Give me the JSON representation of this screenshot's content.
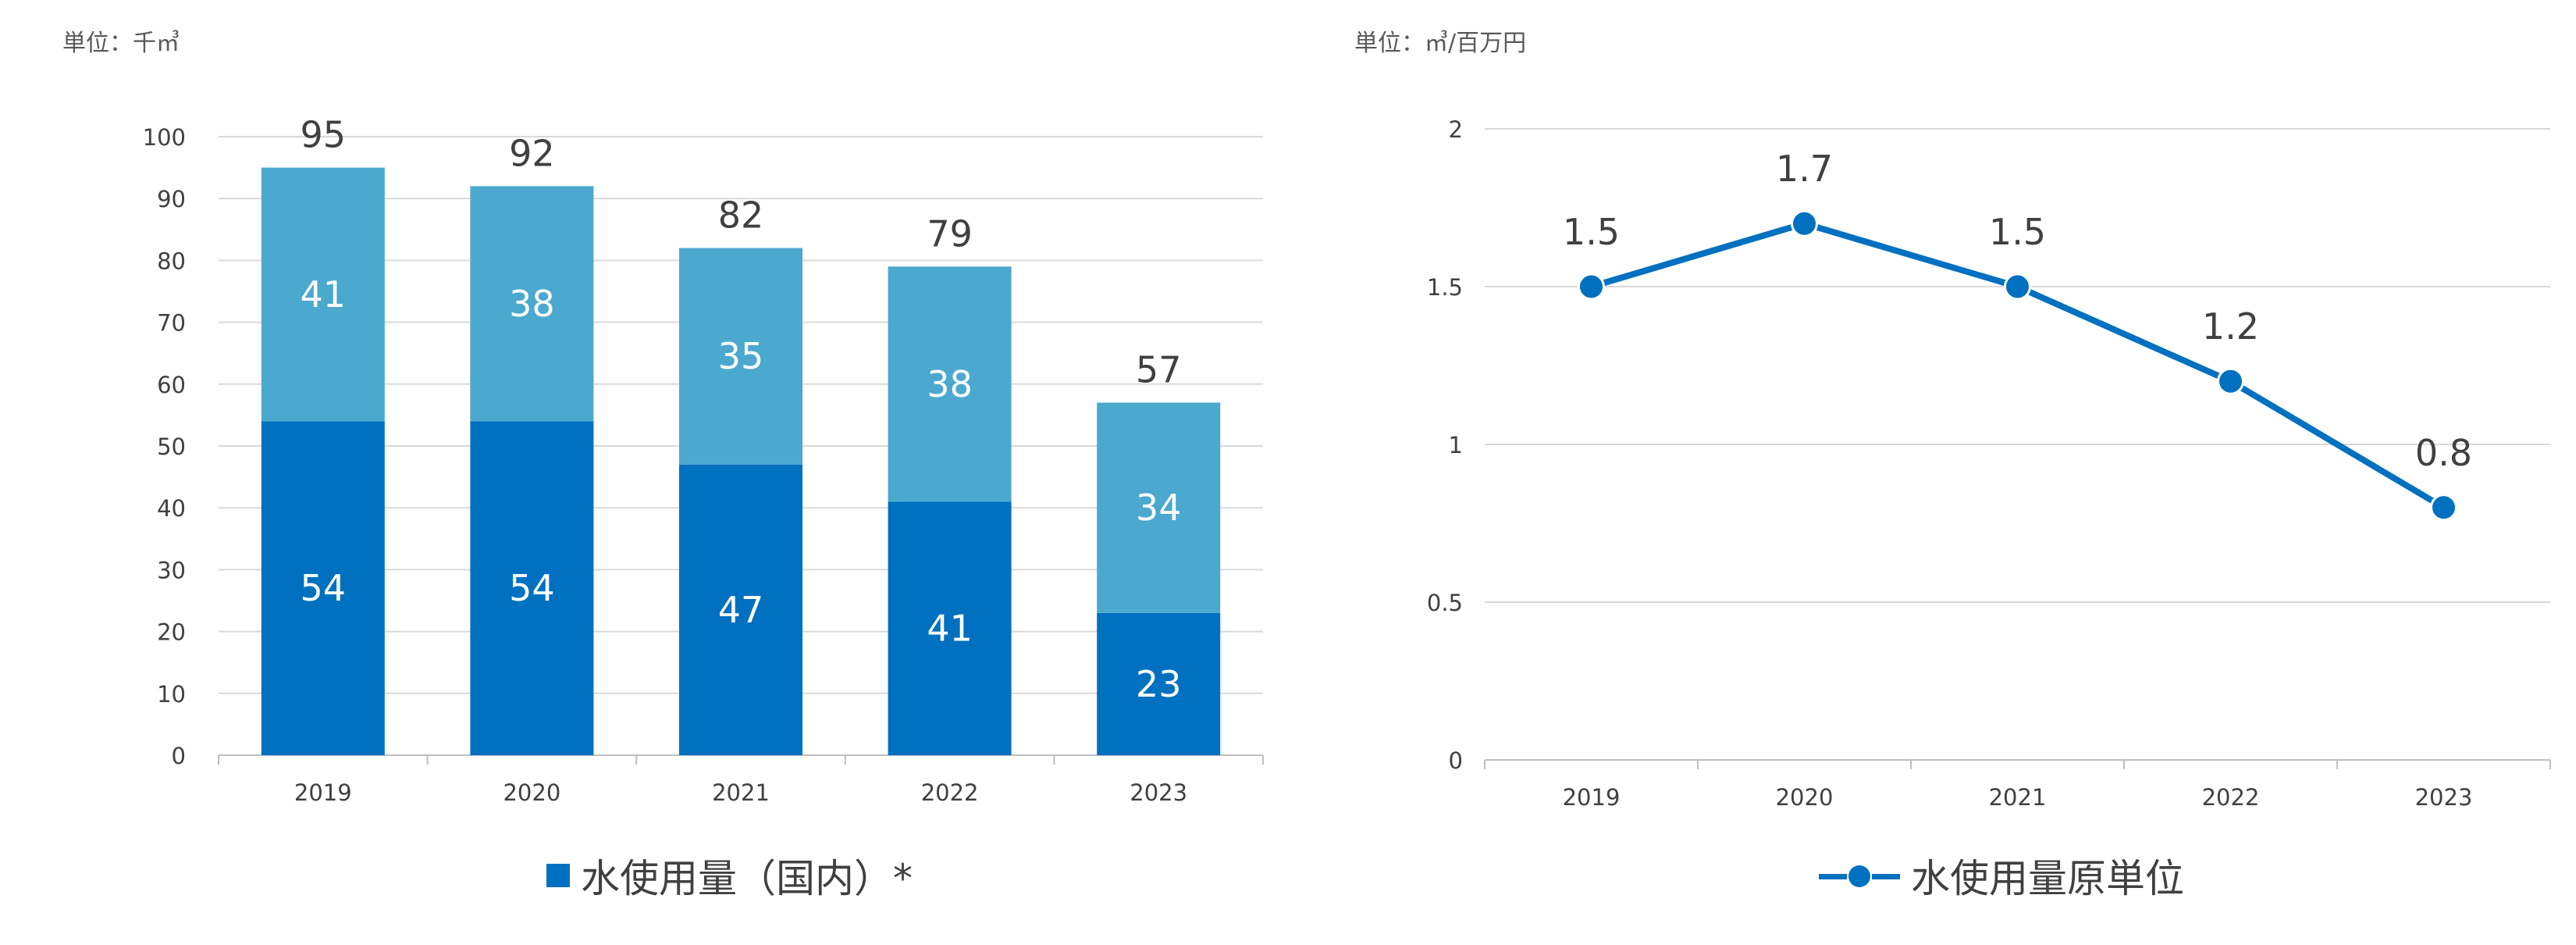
{
  "units": {
    "left": "単位：千㎥",
    "right": "単位：㎥/百万円"
  },
  "legend": {
    "left": "水使用量（国内）*",
    "right": "水使用量原単位"
  },
  "colors": {
    "series_dark": "#0070C0",
    "series_light": "#4BA8CF",
    "grid": "#D9D9D9",
    "axis": "#BFBFBF"
  },
  "chart_data": [
    {
      "type": "bar",
      "stacked": true,
      "categories": [
        "2019",
        "2020",
        "2021",
        "2022",
        "2023"
      ],
      "series": [
        {
          "values": [
            54,
            54,
            47,
            41,
            23
          ]
        },
        {
          "values": [
            41,
            38,
            35,
            38,
            34
          ]
        }
      ],
      "totals": [
        95,
        92,
        82,
        79,
        57
      ],
      "ylim": [
        0,
        100
      ],
      "yticks": [
        0,
        10,
        20,
        30,
        40,
        50,
        60,
        70,
        80,
        90,
        100
      ],
      "grid": true,
      "legend_position": "bottom"
    },
    {
      "type": "line",
      "categories": [
        "2019",
        "2020",
        "2021",
        "2022",
        "2023"
      ],
      "series": [
        {
          "values": [
            1.5,
            1.7,
            1.5,
            1.2,
            0.8
          ],
          "labels": [
            "1.5",
            "1.7",
            "1.5",
            "1.2",
            "0.8"
          ]
        }
      ],
      "ylim": [
        0,
        2
      ],
      "yticks": [
        "0",
        "0.5",
        "1",
        "1.5",
        "2"
      ],
      "grid": true,
      "legend_position": "bottom"
    }
  ]
}
